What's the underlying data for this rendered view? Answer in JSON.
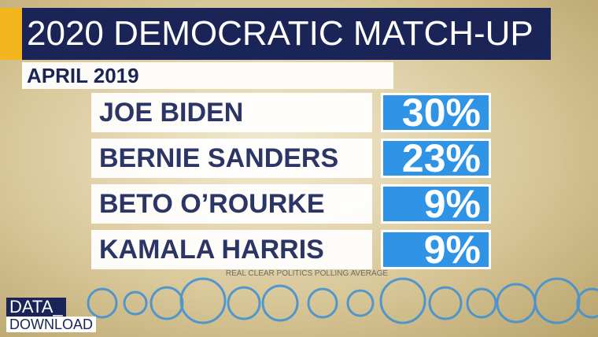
{
  "header": {
    "title": "2020 DEMOCRATIC MATCH-UP",
    "subtitle": "APRIL 2019"
  },
  "rows": [
    {
      "name": "JOE BIDEN",
      "value": "30%"
    },
    {
      "name": "BERNIE SANDERS",
      "value": "23%"
    },
    {
      "name": "BETO O’ROURKE",
      "value": "9%"
    },
    {
      "name": "KAMALA HARRIS",
      "value": "9%"
    }
  ],
  "source": "REAL CLEAR POLITICS POLLING AVERAGE",
  "brand": {
    "line1": "DATA_",
    "line2": "DOWNLOAD"
  }
}
